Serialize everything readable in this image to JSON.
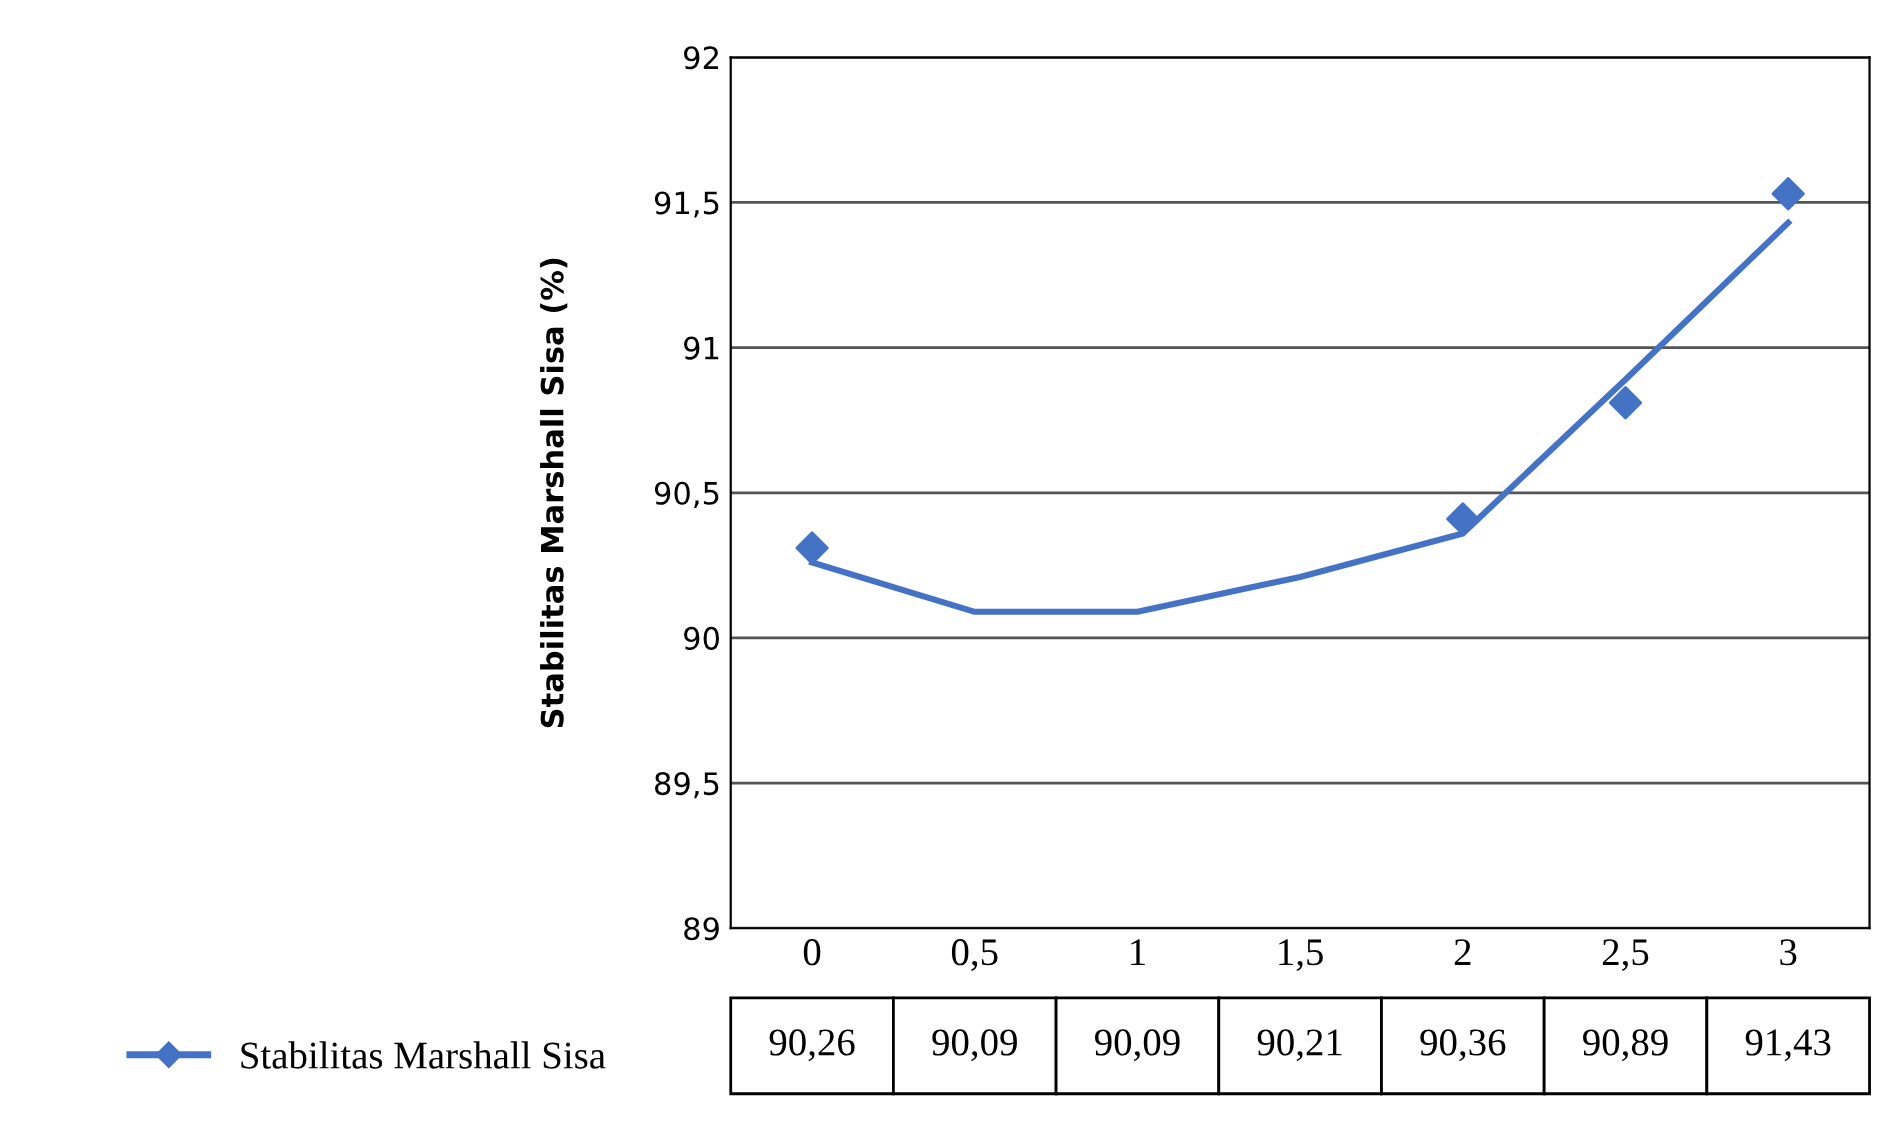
{
  "chart_data": {
    "type": "line",
    "ylabel": "Stabilitas Marshall Sisa (%)",
    "categories": [
      "0",
      "0,5",
      "1",
      "1,5",
      "2",
      "2,5",
      "3"
    ],
    "series": [
      {
        "name": "Stabilitas Marshall Sisa",
        "color": "#4472c4",
        "values": [
          90.26,
          90.09,
          90.09,
          90.21,
          90.36,
          90.89,
          91.43
        ],
        "value_labels": [
          "90,26",
          "90,09",
          "90,09",
          "90,21",
          "90,36",
          "90,89",
          "91,43"
        ],
        "marker": "none"
      },
      {
        "type": "scatter",
        "color": "#4472c4",
        "marker": "diamond",
        "values": [
          90.31,
          null,
          null,
          null,
          90.41,
          90.81,
          91.53
        ]
      }
    ],
    "ylim": [
      89,
      92
    ],
    "yticks": [
      {
        "value": 89,
        "label": "89"
      },
      {
        "value": 89.5,
        "label": "89,5"
      },
      {
        "value": 90,
        "label": "90"
      },
      {
        "value": 90.5,
        "label": "90,5"
      },
      {
        "value": 91,
        "label": "91"
      },
      {
        "value": 91.5,
        "label": "91,5"
      },
      {
        "value": 92,
        "label": "92"
      }
    ],
    "grid": "y",
    "legend": "bottom left"
  }
}
